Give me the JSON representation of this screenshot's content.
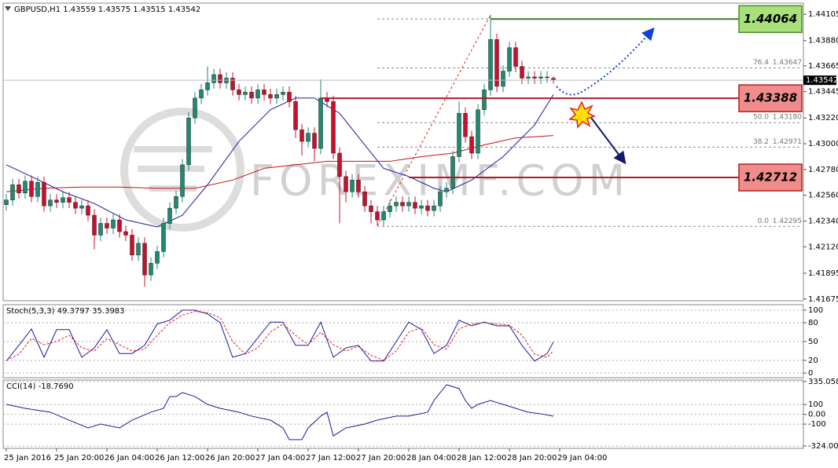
{
  "chart_data": [
    {
      "type": "candlestick",
      "title": "GBPUSD,H1  1.43559 1.43575 1.43515 1.43542",
      "up_color": "#1e8a72",
      "down_color": "#c8102e",
      "open": [
        1.4248,
        1.4252,
        1.4265,
        1.4258,
        1.4268,
        1.4255,
        1.4267,
        1.4247,
        1.4252,
        1.425,
        1.4254,
        1.425,
        1.4245,
        1.4247,
        1.4239,
        1.4222,
        1.4232,
        1.4228,
        1.4235,
        1.4225,
        1.4222,
        1.4205,
        1.4215,
        1.4188,
        1.4198,
        1.4208,
        1.4232,
        1.4245,
        1.4255,
        1.4282,
        1.4322,
        1.4339,
        1.4346,
        1.4352,
        1.4359,
        1.4352,
        1.4356,
        1.4346,
        1.4342,
        1.4344,
        1.4339,
        1.4346,
        1.4342,
        1.4339,
        1.4342,
        1.4344,
        1.4336,
        1.4312,
        1.4302,
        1.4309,
        1.4296,
        1.4339,
        1.4336,
        1.4292,
        1.4272,
        1.4259,
        1.4269,
        1.4259,
        1.4247,
        1.4242,
        1.4235,
        1.4242,
        1.4247,
        1.425,
        1.4247,
        1.425,
        1.4245,
        1.4247,
        1.4243,
        1.4247,
        1.4259,
        1.4262,
        1.4289,
        1.4326,
        1.4306,
        1.4292,
        1.4329,
        1.4346,
        1.4389,
        1.4349,
        1.4362,
        1.4382,
        1.4366,
        1.4356,
        1.4357,
        1.4356,
        1.4357,
        1.43559
      ],
      "high": [
        1.4257,
        1.427,
        1.427,
        1.4273,
        1.4273,
        1.4272,
        1.4272,
        1.4257,
        1.4257,
        1.4259,
        1.4259,
        1.4255,
        1.4252,
        1.4252,
        1.4244,
        1.4237,
        1.4237,
        1.424,
        1.424,
        1.423,
        1.4227,
        1.422,
        1.422,
        1.4203,
        1.4213,
        1.4237,
        1.425,
        1.426,
        1.4287,
        1.4327,
        1.4344,
        1.4351,
        1.4366,
        1.4364,
        1.4364,
        1.4361,
        1.4361,
        1.4351,
        1.4349,
        1.4349,
        1.4351,
        1.4351,
        1.4347,
        1.4347,
        1.4349,
        1.4349,
        1.4341,
        1.4317,
        1.4314,
        1.4314,
        1.4355,
        1.4344,
        1.4341,
        1.4297,
        1.4277,
        1.4274,
        1.4274,
        1.4264,
        1.4252,
        1.4247,
        1.4247,
        1.4252,
        1.4255,
        1.4255,
        1.4255,
        1.4255,
        1.4252,
        1.4252,
        1.4252,
        1.4264,
        1.4267,
        1.4294,
        1.4336,
        1.4331,
        1.4311,
        1.4334,
        1.4351,
        1.441,
        1.4394,
        1.4367,
        1.4387,
        1.4387,
        1.4371,
        1.4362,
        1.4362,
        1.4362,
        1.4362,
        1.43575
      ],
      "low": [
        1.4243,
        1.4247,
        1.4253,
        1.4253,
        1.425,
        1.425,
        1.4242,
        1.4242,
        1.4245,
        1.4245,
        1.4245,
        1.424,
        1.424,
        1.4234,
        1.421,
        1.4217,
        1.4223,
        1.4223,
        1.422,
        1.4217,
        1.42,
        1.42,
        1.4178,
        1.4183,
        1.4193,
        1.4203,
        1.4227,
        1.424,
        1.425,
        1.4277,
        1.4317,
        1.4334,
        1.4341,
        1.4347,
        1.4347,
        1.4347,
        1.4341,
        1.4337,
        1.4337,
        1.4334,
        1.4334,
        1.4337,
        1.4334,
        1.4334,
        1.4337,
        1.4331,
        1.4305,
        1.429,
        1.4297,
        1.4285,
        1.4291,
        1.4331,
        1.4287,
        1.4232,
        1.425,
        1.4254,
        1.4254,
        1.4242,
        1.4232,
        1.423,
        1.423,
        1.4237,
        1.4242,
        1.4242,
        1.4242,
        1.424,
        1.424,
        1.4238,
        1.4238,
        1.4242,
        1.4254,
        1.4257,
        1.4284,
        1.4301,
        1.4287,
        1.4287,
        1.4324,
        1.4341,
        1.4344,
        1.4344,
        1.4357,
        1.4361,
        1.4351,
        1.4351,
        1.4351,
        1.4351,
        1.4352,
        1.43515
      ],
      "close": [
        1.4252,
        1.4265,
        1.4258,
        1.4268,
        1.4255,
        1.4267,
        1.4247,
        1.4252,
        1.425,
        1.4254,
        1.425,
        1.4245,
        1.4247,
        1.4239,
        1.4222,
        1.4232,
        1.4228,
        1.4235,
        1.4225,
        1.4222,
        1.4205,
        1.4215,
        1.4188,
        1.4198,
        1.4208,
        1.4232,
        1.4245,
        1.4255,
        1.4282,
        1.4322,
        1.4339,
        1.4346,
        1.4352,
        1.4359,
        1.4352,
        1.4356,
        1.4346,
        1.4342,
        1.4344,
        1.4339,
        1.4346,
        1.4342,
        1.4339,
        1.4342,
        1.4344,
        1.4336,
        1.4312,
        1.4302,
        1.4309,
        1.4296,
        1.4339,
        1.4336,
        1.4292,
        1.4272,
        1.4259,
        1.4269,
        1.4259,
        1.4247,
        1.4242,
        1.4235,
        1.4242,
        1.4247,
        1.425,
        1.4247,
        1.425,
        1.4245,
        1.4247,
        1.4243,
        1.4247,
        1.4259,
        1.4262,
        1.4289,
        1.4326,
        1.4306,
        1.4292,
        1.4329,
        1.4346,
        1.4389,
        1.4349,
        1.4362,
        1.4382,
        1.4366,
        1.4356,
        1.4357,
        1.4356,
        1.4357,
        1.4357,
        1.43542
      ],
      "xlim": [
        -0.5,
        126.75
      ],
      "ylim": [
        1.4166,
        1.442
      ],
      "yticks": [
        1.44105,
        {
          "value": 1.4388,
          "label": "1.43880"
        },
        1.43665,
        1.43445,
        {
          "value": 1.4322,
          "label": "1.43220"
        },
        {
          "value": 1.43,
          "label": "1.43000"
        },
        {
          "value": 1.4278,
          "label": "1.42780"
        },
        {
          "value": 1.4256,
          "label": "1.42560"
        },
        {
          "value": 1.4234,
          "label": "1.42340"
        },
        {
          "value": 1.4212,
          "label": "1.42120"
        },
        1.41895,
        1.41675
      ],
      "ma": [
        {
          "color": "#1a1aa0",
          "x": [
            0,
            4,
            9,
            14,
            19,
            24,
            28,
            32,
            37,
            42,
            46,
            49,
            53,
            57,
            60,
            64,
            68,
            70,
            74,
            79,
            84,
            87
          ],
          "values": [
            1.4282,
            1.4272,
            1.4259,
            1.4249,
            1.4235,
            1.4229,
            1.4239,
            1.4265,
            1.4302,
            1.4329,
            1.4339,
            1.4339,
            1.4326,
            1.4299,
            1.4279,
            1.4272,
            1.4262,
            1.4259,
            1.4269,
            1.4289,
            1.4316,
            1.4342
          ]
        },
        {
          "color": "#cc1010",
          "x": [
            0,
            6,
            12,
            18,
            24,
            30,
            36,
            41,
            46,
            51,
            56,
            61,
            66,
            71,
            76,
            81,
            87
          ],
          "values": [
            1.4259,
            1.4262,
            1.4263,
            1.4263,
            1.4262,
            1.4262,
            1.4269,
            1.4279,
            1.4282,
            1.4285,
            1.4285,
            1.4285,
            1.4289,
            1.4292,
            1.4299,
            1.4305,
            1.4307
          ]
        }
      ],
      "fib": {
        "start": 59,
        "color": "#8c8c8c",
        "line_color": "#e02020",
        "x": [
          59,
          77
        ],
        "values": [
          1.423,
          1.441
        ],
        "levels": [
          {
            "price": 1.44065
          },
          {
            "level": "76.4",
            "price": 1.43647
          },
          {
            "level": "50.0",
            "price": {
              "value": 1.4318,
              "label": "1.43180"
            }
          },
          {
            "level": "38.2",
            "price": 1.42971
          },
          {
            "level": "0.0",
            "price": 1.42295
          }
        ]
      },
      "levels": [
        {
          "value": 1.44064,
          "start": 77,
          "color": "#3d7d1d",
          "box": "#a8e07c",
          "border": "#4b8a2a"
        },
        {
          "value": 1.43388,
          "start": 50,
          "color": "#b01a2a",
          "box": "#f08c8c",
          "border": "#b02020"
        },
        {
          "value": 1.42712,
          "start": 64,
          "color": "#b01a2a",
          "box": "#f08c8c",
          "border": "#b02020"
        }
      ],
      "watermark": "FOREXIMF.COM"
    },
    {
      "type": "line",
      "title": "Stoch(5,3,3) 49.3797 35.3983",
      "grid": true,
      "ylim": [
        -7.5,
        108.75
      ],
      "yticks": [
        100,
        80,
        50,
        20,
        0
      ],
      "series": [
        {
          "color": "#1a1aa0",
          "x": [
            0,
            2,
            4,
            6,
            8,
            10,
            12,
            14,
            16,
            18,
            20,
            22,
            24,
            26,
            28,
            30,
            32,
            34,
            36,
            38,
            40,
            42,
            44,
            46,
            48,
            50,
            52,
            54,
            56,
            58,
            60,
            62,
            64,
            66,
            68,
            70,
            72,
            74,
            76,
            78,
            80,
            82,
            84,
            86,
            87
          ],
          "values": [
            19,
            44,
            70,
            25,
            69,
            69,
            25,
            40,
            69,
            31,
            31,
            44,
            78,
            84,
            100,
            100,
            94,
            80,
            25,
            31,
            56,
            81,
            81,
            44,
            44,
            81,
            25,
            40,
            44,
            19,
            19,
            50,
            81,
            69,
            31,
            44,
            84,
            75,
            81,
            75,
            75,
            44,
            19,
            31,
            49.3797
          ]
        },
        {
          "color": "#e02020",
          "dashed": true,
          "x": [
            0,
            2,
            4,
            6,
            8,
            10,
            12,
            14,
            16,
            18,
            20,
            22,
            24,
            26,
            28,
            30,
            32,
            34,
            36,
            38,
            40,
            42,
            44,
            46,
            48,
            50,
            52,
            54,
            56,
            58,
            60,
            62,
            64,
            66,
            68,
            70,
            72,
            74,
            76,
            78,
            80,
            82,
            84,
            86,
            87
          ],
          "values": [
            20,
            30,
            55,
            45,
            50,
            60,
            40,
            35,
            55,
            45,
            35,
            38,
            60,
            80,
            92,
            98,
            96,
            88,
            50,
            30,
            40,
            65,
            78,
            60,
            45,
            65,
            45,
            35,
            42,
            28,
            20,
            35,
            65,
            72,
            45,
            38,
            70,
            78,
            80,
            78,
            76,
            60,
            30,
            25,
            35.3983
          ]
        }
      ]
    },
    {
      "type": "line",
      "title": "CCI(14) -18.7690",
      "grid": true,
      "ylim": [
        -324.0088,
        335.0582
      ],
      "yticks": [
        335.0582,
        100,
        {
          "value": 0,
          "label": "0.00"
        },
        -100,
        -324.0088
      ],
      "series": [
        {
          "color": "#1a1aa0",
          "x": [
            0,
            3,
            7,
            10,
            13,
            15,
            18,
            20,
            23,
            25,
            26,
            27,
            28,
            30,
            32,
            34,
            37,
            39,
            42,
            44,
            45,
            47,
            48,
            50,
            51,
            52,
            54,
            57,
            59,
            62,
            64,
            67,
            68,
            69,
            70,
            72,
            73,
            74,
            75,
            77,
            79,
            81,
            83,
            85,
            87
          ],
          "values": [
            102,
            62,
            22,
            -59,
            -139,
            -99,
            -139,
            -59,
            22,
            62,
            182,
            182,
            223,
            182,
            102,
            62,
            22,
            -18,
            -59,
            -139,
            -259,
            -259,
            -139,
            -18,
            22,
            -220,
            -139,
            -99,
            -59,
            -18,
            -18,
            22,
            142,
            223,
            303,
            263,
            142,
            62,
            102,
            142,
            102,
            62,
            22,
            6,
            -18.769
          ]
        }
      ],
      "xticks": [
        {
          "value": 0,
          "label": "25 Jan 2016"
        },
        {
          "value": 8,
          "label": "25 Jan 20:00"
        },
        {
          "value": 16,
          "label": "26 Jan 04:00"
        },
        {
          "value": 24,
          "label": "26 Jan 12:00"
        },
        {
          "value": 32,
          "label": "26 Jan 20:00"
        },
        {
          "value": 40,
          "label": "27 Jan 04:00"
        },
        {
          "value": 48,
          "label": "27 Jan 12:00"
        },
        {
          "value": 56,
          "label": "27 Jan 20:00"
        },
        {
          "value": 64,
          "label": "28 Jan 04:00"
        },
        {
          "value": 72,
          "label": "28 Jan 12:00"
        },
        {
          "value": 80,
          "label": "28 Jan 20:00"
        },
        {
          "value": 88,
          "label": "29 Jan 04:00"
        }
      ]
    }
  ]
}
